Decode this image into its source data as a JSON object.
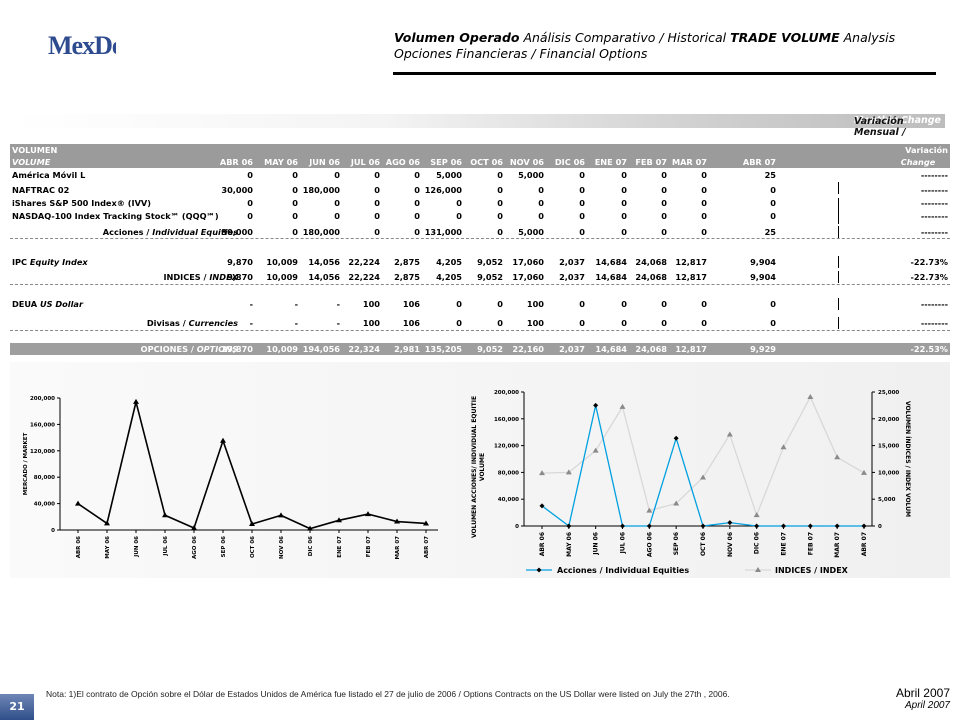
{
  "brand": {
    "logo_text": "MexDer",
    "brand_color": "#2d4b8e"
  },
  "header": {
    "t1": "Volumen Operado",
    "t2": " Análisis Comparativo / Historical ",
    "t3": "TRADE VOLUME",
    "t4": " Analysis",
    "t5": "Opciones Financieras / Financial Options"
  },
  "band": {
    "es": "Variación Mensual / ",
    "en": "Monthly Change"
  },
  "table": {
    "head1_left": "VOLUMEN",
    "head1_right": "Variación",
    "head2_left": "VOLUME",
    "head2_right": "Change",
    "columns": [
      "ABR 06",
      "MAY 06",
      "JUN 06",
      "JUL 06",
      "AGO 06",
      "SEP 06",
      "OCT 06",
      "NOV 06",
      "DIC 06",
      "ENE 07",
      "FEB 07",
      "MAR 07",
      "ABR 07"
    ],
    "rows": [
      {
        "label": "América Móvil L",
        "values": [
          "0",
          "0",
          "0",
          "0",
          "0",
          "5,000",
          "0",
          "5,000",
          "0",
          "0",
          "0",
          "0",
          "25"
        ],
        "change": "--------"
      },
      {
        "label": "NAFTRAC 02",
        "values": [
          "30,000",
          "0",
          "180,000",
          "0",
          "0",
          "126,000",
          "0",
          "0",
          "0",
          "0",
          "0",
          "0",
          "0"
        ],
        "change": "--------"
      },
      {
        "label": "iShares S&P 500 Index® (IVV)",
        "values": [
          "0",
          "0",
          "0",
          "0",
          "0",
          "0",
          "0",
          "0",
          "0",
          "0",
          "0",
          "0",
          "0"
        ],
        "change": "--------"
      },
      {
        "label": "NASDAQ-100 Index Tracking Stock℠ (QQQ℠)",
        "values": [
          "0",
          "0",
          "0",
          "0",
          "0",
          "0",
          "0",
          "0",
          "0",
          "0",
          "0",
          "0",
          "0"
        ],
        "change": "--------"
      },
      {
        "label": "Acciones / ",
        "label_i": "Individual Equities",
        "values": [
          "30,000",
          "0",
          "180,000",
          "0",
          "0",
          "131,000",
          "0",
          "5,000",
          "0",
          "0",
          "0",
          "0",
          "25"
        ],
        "change": "--------"
      },
      {
        "label": "IPC ",
        "label_i": "Equity Index",
        "values": [
          "9,870",
          "10,009",
          "14,056",
          "22,224",
          "2,875",
          "4,205",
          "9,052",
          "17,060",
          "2,037",
          "14,684",
          "24,068",
          "12,817",
          "9,904"
        ],
        "change": "-22.73%"
      },
      {
        "label": "INDICES / ",
        "label_i": "INDEX",
        "values": [
          "9,870",
          "10,009",
          "14,056",
          "22,224",
          "2,875",
          "4,205",
          "9,052",
          "17,060",
          "2,037",
          "14,684",
          "24,068",
          "12,817",
          "9,904"
        ],
        "change": "-22.73%"
      },
      {
        "label": "DEUA ",
        "label_i": "US Dollar",
        "values": [
          "-",
          "-",
          "-",
          "100",
          "106",
          "0",
          "0",
          "100",
          "0",
          "0",
          "0",
          "0",
          "0"
        ],
        "change": "--------"
      },
      {
        "label": "Divisas / ",
        "label_i": "Currencies",
        "values": [
          "-",
          "-",
          "-",
          "100",
          "106",
          "0",
          "0",
          "100",
          "0",
          "0",
          "0",
          "0",
          "0"
        ],
        "change": "--------"
      },
      {
        "label": "OPCIONES / ",
        "label_i": "OPTIONS",
        "values": [
          "39,870",
          "10,009",
          "194,056",
          "22,324",
          "2,981",
          "135,205",
          "9,052",
          "22,160",
          "2,037",
          "14,684",
          "24,068",
          "12,817",
          "9,929"
        ],
        "change": "-22.53%"
      }
    ]
  },
  "chart_data": [
    {
      "type": "line",
      "categories": [
        "ABR 06",
        "MAY 06",
        "JUN 06",
        "JUL 06",
        "AGO 06",
        "SEP 06",
        "OCT 06",
        "NOV 06",
        "DIC 06",
        "ENE 07",
        "FEB 07",
        "MAR 07",
        "ABR 07"
      ],
      "series": [
        {
          "values": [
            39870,
            10009,
            194056,
            22324,
            2981,
            135205,
            9052,
            22160,
            2037,
            14684,
            24068,
            12817,
            9929
          ]
        }
      ],
      "ylabel": "MERCADO / MARKET",
      "ylim": [
        0,
        200000
      ],
      "yticks": [
        "0",
        "40,000",
        "80,000",
        "120,000",
        "160,000",
        "200,000"
      ],
      "grid": false,
      "color": "#000000"
    },
    {
      "type": "line",
      "categories": [
        "ABR 06",
        "MAY 06",
        "JUN 06",
        "JUL 06",
        "AGO 06",
        "SEP 06",
        "OCT 06",
        "NOV 06",
        "DIC 06",
        "ENE 07",
        "FEB 07",
        "MAR 07",
        "ABR 07"
      ],
      "series": [
        {
          "name": "Acciones / Individual Equities",
          "axis": "left",
          "values": [
            30000,
            0,
            180000,
            0,
            0,
            131000,
            0,
            5000,
            0,
            0,
            0,
            0,
            25
          ],
          "color": "#00a0e0",
          "marker_color": "#000000"
        },
        {
          "name": "INDICES / INDEX",
          "axis": "right",
          "values": [
            9870,
            10009,
            14056,
            22224,
            2875,
            4205,
            9052,
            17060,
            2037,
            14684,
            24068,
            12817,
            9904
          ],
          "color": "#d8d8d8",
          "marker_color": "#8a8a8a"
        }
      ],
      "ylabel": "VOLUMEN ACCIONES/ INDIVIDUAL EQUITIE VOLUME",
      "ylabel_right": "VOLUMEN ÍNDICES / INDEX VOLUM",
      "ylim": [
        0,
        200000
      ],
      "ylim_right": [
        0,
        25000
      ],
      "yticks": [
        "0",
        "40,000",
        "80,000",
        "120,000",
        "160,000",
        "200,000"
      ],
      "yticks_right": [
        "0",
        "5,000",
        "10,000",
        "15,000",
        "20,000",
        "25,000"
      ],
      "legend": "bottom",
      "grid": false
    }
  ],
  "footer": {
    "note": "Nota: 1)El contrato de Opción sobre el Dólar de Estados Unidos de América fue listado el 27 de julio de 2006 / Options Contracts on the US Dollar were listed on July the 27th , 2006.",
    "date_es": "Abril 2007",
    "date_en": "April 2007",
    "page": "21"
  }
}
